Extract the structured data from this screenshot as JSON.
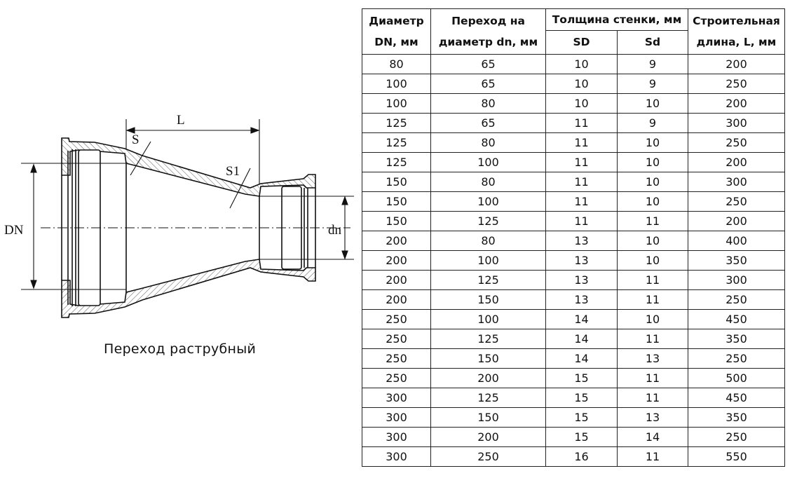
{
  "drawing": {
    "labels": {
      "L": "L",
      "S": "S",
      "S1": "S1",
      "DN": "DN",
      "dn": "dn"
    },
    "caption": "Переход раструбный"
  },
  "table": {
    "headers": {
      "dn_main_line1": "Диаметр",
      "dn_main_line2": "DN, мм",
      "dn_to_line1": "Переход на",
      "dn_to_line2": "диаметр dn, мм",
      "wall": "Толщина стенки, мм",
      "sd_upper": "SD",
      "sd_lower": "Sd",
      "length_line1": "Строительная",
      "length_line2": "длина, L, мм"
    },
    "rows": [
      [
        "80",
        "65",
        "10",
        "9",
        "200"
      ],
      [
        "100",
        "65",
        "10",
        "9",
        "250"
      ],
      [
        "100",
        "80",
        "10",
        "10",
        "200"
      ],
      [
        "125",
        "65",
        "11",
        "9",
        "300"
      ],
      [
        "125",
        "80",
        "11",
        "10",
        "250"
      ],
      [
        "125",
        "100",
        "11",
        "10",
        "200"
      ],
      [
        "150",
        "80",
        "11",
        "10",
        "300"
      ],
      [
        "150",
        "100",
        "11",
        "10",
        "250"
      ],
      [
        "150",
        "125",
        "11",
        "11",
        "200"
      ],
      [
        "200",
        "80",
        "13",
        "10",
        "400"
      ],
      [
        "200",
        "100",
        "13",
        "10",
        "350"
      ],
      [
        "200",
        "125",
        "13",
        "11",
        "300"
      ],
      [
        "200",
        "150",
        "13",
        "11",
        "250"
      ],
      [
        "250",
        "100",
        "14",
        "10",
        "450"
      ],
      [
        "250",
        "125",
        "14",
        "11",
        "350"
      ],
      [
        "250",
        "150",
        "14",
        "13",
        "250"
      ],
      [
        "250",
        "200",
        "15",
        "11",
        "500"
      ],
      [
        "300",
        "125",
        "15",
        "11",
        "450"
      ],
      [
        "300",
        "150",
        "15",
        "13",
        "350"
      ],
      [
        "300",
        "200",
        "15",
        "14",
        "250"
      ],
      [
        "300",
        "250",
        "16",
        "11",
        "550"
      ]
    ]
  }
}
